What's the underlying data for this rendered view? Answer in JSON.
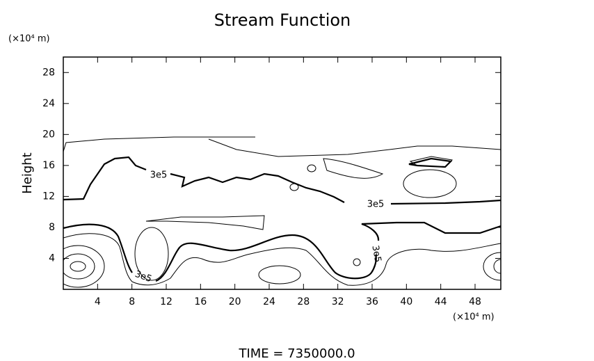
{
  "chart_data": {
    "type": "contour",
    "title": "Stream Function",
    "y_unit": "(×10⁴ m)",
    "x_unit": "(×10⁴ m)",
    "ylabel": "Height",
    "footer": "TIME  =  7350000.0",
    "xlim": [
      0,
      51
    ],
    "xticks": [
      4,
      8,
      12,
      16,
      20,
      24,
      28,
      32,
      36,
      40,
      44,
      48
    ],
    "ylim": [
      0,
      30
    ],
    "yticks": [
      4,
      8,
      12,
      16,
      20,
      24,
      28
    ],
    "contour_labels": [
      {
        "value": 300000,
        "label": "3e5"
      },
      {
        "value": 300000,
        "label": "3e5"
      },
      {
        "value": 300000,
        "label": "3e5"
      },
      {
        "value": 300000,
        "label": "3e5"
      }
    ],
    "color": "#000000"
  }
}
